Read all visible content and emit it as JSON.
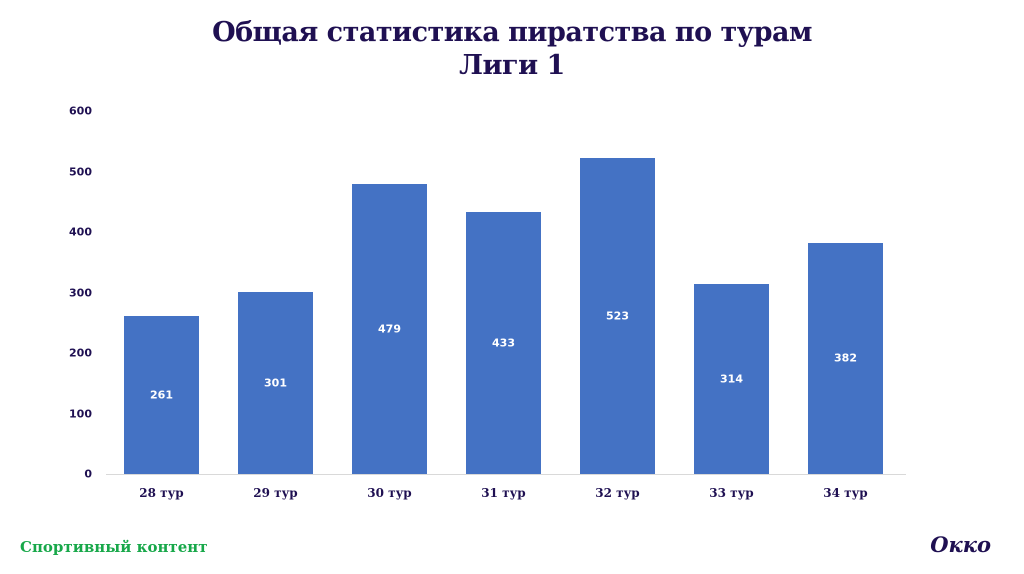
{
  "title": {
    "line1": "Общая статистика пиратства по турам",
    "line2": "Лиги 1"
  },
  "footer": {
    "left_text": "Спортивный контент",
    "brand": "Окко"
  },
  "colors": {
    "bar": "#4472c4",
    "title": "#1f1052",
    "footer_left": "#18a84a"
  },
  "chart_data": {
    "type": "bar",
    "title": "Общая статистика пиратства по турам Лиги 1",
    "xlabel": "",
    "ylabel": "",
    "categories": [
      "28 тур",
      "29 тур",
      "30 тур",
      "31 тур",
      "32 тур",
      "33 тур",
      "34 тур"
    ],
    "values": [
      261,
      301,
      479,
      433,
      523,
      314,
      382
    ],
    "ylim": [
      0,
      600
    ],
    "yticks": [
      "0",
      "100",
      "200",
      "300",
      "400",
      "500",
      "600"
    ],
    "grid": false,
    "legend": null,
    "data_labels": true
  }
}
